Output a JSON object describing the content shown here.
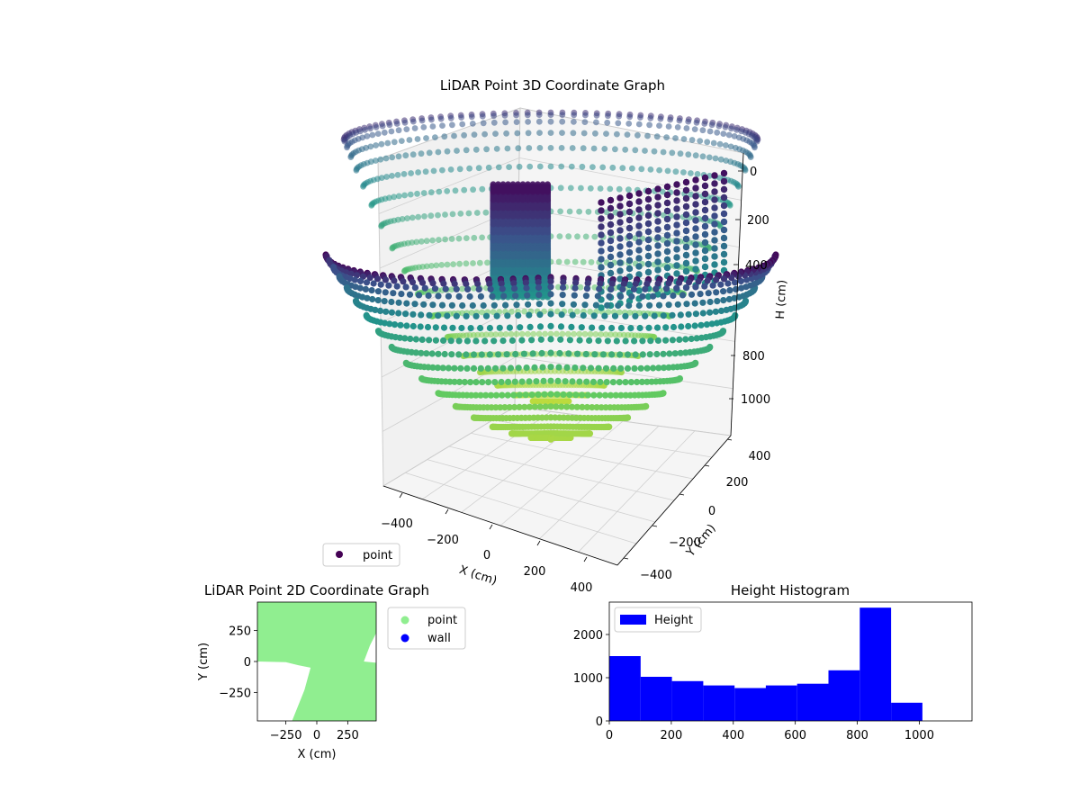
{
  "chart_data": [
    {
      "type": "scatter",
      "projection": "3d",
      "title": "LiDAR Point 3D Coordinate Graph",
      "xlabel": "X (cm)",
      "ylabel": "Y (cm)",
      "zlabel": "H (cm)",
      "xlim": [
        -480,
        480
      ],
      "ylim": [
        -480,
        480
      ],
      "zlim": [
        1150,
        -50
      ],
      "z_inverted": true,
      "xticks": [
        "−400",
        "−200",
        "0",
        "200",
        "400"
      ],
      "yticks": [
        "−400",
        "−200",
        "0",
        "200",
        "400"
      ],
      "zticks": [
        "0",
        "200",
        "400",
        "800",
        "1000"
      ],
      "colormap": "viridis",
      "grid": true,
      "legend": {
        "position": "lower-left",
        "entries": [
          {
            "label": "point",
            "color": "#440154"
          }
        ]
      },
      "series": [
        {
          "name": "point",
          "shape": "hemispherical scan surface: radius ≈ 480 cm, height 0–1000 cm, plus two vertical wall clusters near the top"
        }
      ]
    },
    {
      "type": "scatter",
      "title": "LiDAR Point 2D Coordinate Graph",
      "xlabel": "X (cm)",
      "ylabel": "Y (cm)",
      "xlim": [
        -480,
        480
      ],
      "ylim": [
        -480,
        480
      ],
      "xticks": [
        "−250",
        "0",
        "250"
      ],
      "yticks": [
        "250",
        "0",
        "−250"
      ],
      "legend": {
        "position": "outside-right",
        "entries": [
          {
            "label": "point",
            "color": "#90ee90"
          },
          {
            "label": "wall",
            "color": "#0000ff"
          }
        ]
      },
      "series": [
        {
          "name": "point",
          "color": "#90ee90",
          "region": "fills most of plane; empty wedge in lower-left quadrant"
        }
      ]
    },
    {
      "type": "bar",
      "subtype": "histogram",
      "title": "Height Histogram",
      "xlabel": "",
      "ylabel": "",
      "bin_edges": [
        0,
        101,
        202,
        303,
        404,
        505,
        606,
        707,
        808,
        909,
        1010
      ],
      "values": [
        1500,
        1020,
        920,
        820,
        760,
        820,
        860,
        1170,
        2620,
        420
      ],
      "xlim": [
        0,
        1170
      ],
      "ylim": [
        0,
        2750
      ],
      "xticks": [
        "0",
        "200",
        "400",
        "600",
        "800",
        "1000"
      ],
      "yticks": [
        "0",
        "1000",
        "2000"
      ],
      "color": "#0000ff",
      "legend": {
        "position": "upper-left",
        "entries": [
          {
            "label": "Height",
            "color": "#0000ff"
          }
        ]
      },
      "series": [
        {
          "name": "Height"
        }
      ]
    }
  ]
}
